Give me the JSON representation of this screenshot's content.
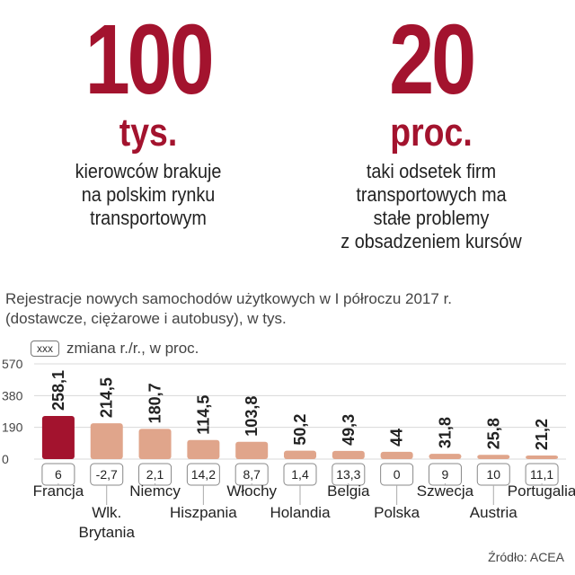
{
  "stats": [
    {
      "value": "100",
      "unit": "tys.",
      "description": [
        "kierowców brakuje",
        "na polskim rynku",
        "transportowym"
      ]
    },
    {
      "value": "20",
      "unit": "proc.",
      "description": [
        "taki odsetek firm",
        "transportowych ma",
        "stałe problemy",
        "z obsadzeniem kursów"
      ]
    }
  ],
  "chart_title_lines": [
    "Rejestracje nowych samochodów użytkowych w I półroczu 2017 r.",
    "(dostawcze, ciężarowe i autobusy), w tys."
  ],
  "legend": {
    "box_text": "xxx",
    "label": "zmiana r./r., w proc."
  },
  "source": "Źródło: ACEA",
  "colors": {
    "accent": "#a3132e",
    "bar": "#e0a58b",
    "bar_highlight": "#a3132e"
  },
  "chart_data": {
    "type": "bar",
    "categories": [
      "Francja",
      "Wlk. Brytania",
      "Niemcy",
      "Hiszpania",
      "Włochy",
      "Holandia",
      "Belgia",
      "Polska",
      "Szwecja",
      "Austria",
      "Portugalia"
    ],
    "category_label_lines": [
      [
        "Francja"
      ],
      [
        "Wlk.",
        "Brytania"
      ],
      [
        "Niemcy"
      ],
      [
        "Hiszpania"
      ],
      [
        "Włochy"
      ],
      [
        "Holandia"
      ],
      [
        "Belgia"
      ],
      [
        "Polska"
      ],
      [
        "Szwecja"
      ],
      [
        "Austria"
      ],
      [
        "Portugalia"
      ]
    ],
    "values": [
      258.1,
      214.5,
      180.7,
      114.5,
      103.8,
      50.2,
      49.3,
      44,
      31.8,
      25.8,
      21.2
    ],
    "value_labels": [
      "258,1",
      "214,5",
      "180,7",
      "114,5",
      "103,8",
      "50,2",
      "49,3",
      "44",
      "31,8",
      "25,8",
      "21,2"
    ],
    "change_labels": [
      "6",
      "-2,7",
      "2,1",
      "14,2",
      "8,7",
      "1,4",
      "13,3",
      "0",
      "9",
      "10",
      "11,1"
    ],
    "yticks": [
      0,
      190,
      380,
      570
    ],
    "ylim": [
      0,
      570
    ],
    "grid": true
  }
}
